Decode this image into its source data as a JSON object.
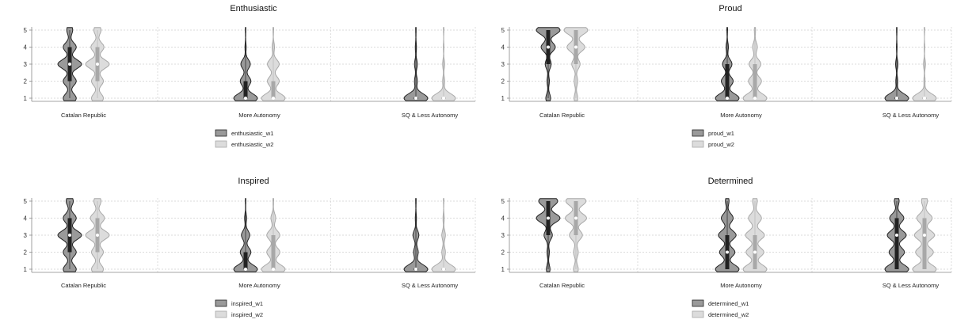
{
  "colors": {
    "w1_fill": "#9a9a9a",
    "w1_stroke": "#222222",
    "w2_fill": "#dcdcdc",
    "w2_stroke": "#a8a8a8",
    "grid": "#d0d0d0"
  },
  "chart_data": [
    {
      "type": "violin",
      "title": "Enthusiastic",
      "categories": [
        "Catalan Republic",
        "More Autonomy",
        "SQ & Less Autonomy"
      ],
      "ylim": [
        1,
        5
      ],
      "yticks": [
        1,
        2,
        3,
        4,
        5
      ],
      "grid": true,
      "legend": "bottom-center",
      "series": [
        {
          "name": "enthusiastic_w1",
          "groups": [
            {
              "dist": [
                0.55,
                0.55,
                1.0,
                0.55,
                0.25
              ],
              "median": 3,
              "q1": 2,
              "q3": 4
            },
            {
              "dist": [
                1.0,
                0.45,
                0.4,
                0.05,
                0.02
              ],
              "median": 1,
              "q1": 1,
              "q3": 2
            },
            {
              "dist": [
                1.0,
                0.12,
                0.12,
                0.05,
                0.02
              ],
              "median": 1,
              "q1": 1,
              "q3": 1
            }
          ]
        },
        {
          "name": "enthusiastic_w2",
          "groups": [
            {
              "dist": [
                0.5,
                0.5,
                1.0,
                0.55,
                0.3
              ],
              "median": 3,
              "q1": 2,
              "q3": 4
            },
            {
              "dist": [
                1.0,
                0.5,
                0.5,
                0.1,
                0.03
              ],
              "median": 1,
              "q1": 1,
              "q3": 2
            },
            {
              "dist": [
                1.0,
                0.08,
                0.08,
                0.03,
                0.02
              ],
              "median": 1,
              "q1": 1,
              "q3": 1
            }
          ]
        }
      ]
    },
    {
      "type": "violin",
      "title": "Proud",
      "categories": [
        "Catalan Republic",
        "More Autonomy",
        "SQ & Less Autonomy"
      ],
      "ylim": [
        1,
        5
      ],
      "yticks": [
        1,
        2,
        3,
        4,
        5
      ],
      "grid": true,
      "legend": "bottom-center",
      "series": [
        {
          "name": "proud_w1",
          "groups": [
            {
              "dist": [
                0.2,
                0.1,
                0.25,
                0.6,
                1.0
              ],
              "median": 4,
              "q1": 3,
              "q3": 5
            },
            {
              "dist": [
                1.0,
                0.5,
                0.4,
                0.1,
                0.03
              ],
              "median": 1,
              "q1": 1,
              "q3": 3
            },
            {
              "dist": [
                1.0,
                0.08,
                0.1,
                0.03,
                0.02
              ],
              "median": 1,
              "q1": 1,
              "q3": 1
            }
          ]
        },
        {
          "name": "proud_w2",
          "groups": [
            {
              "dist": [
                0.15,
                0.15,
                0.35,
                0.75,
                1.0
              ],
              "median": 4,
              "q1": 3,
              "q3": 5
            },
            {
              "dist": [
                1.0,
                0.55,
                0.5,
                0.2,
                0.05
              ],
              "median": 1,
              "q1": 1,
              "q3": 3
            },
            {
              "dist": [
                1.0,
                0.05,
                0.08,
                0.03,
                0.02
              ],
              "median": 1,
              "q1": 1,
              "q3": 1
            }
          ]
        }
      ]
    },
    {
      "type": "violin",
      "title": "Inspired",
      "categories": [
        "Catalan Republic",
        "More Autonomy",
        "SQ & Less Autonomy"
      ],
      "ylim": [
        1,
        5
      ],
      "yticks": [
        1,
        2,
        3,
        4,
        5
      ],
      "grid": true,
      "legend": "bottom-center",
      "series": [
        {
          "name": "inspired_w1",
          "groups": [
            {
              "dist": [
                0.55,
                0.55,
                1.0,
                0.55,
                0.3
              ],
              "median": 3,
              "q1": 2,
              "q3": 4
            },
            {
              "dist": [
                1.0,
                0.45,
                0.35,
                0.08,
                0.02
              ],
              "median": 1,
              "q1": 1,
              "q3": 2
            },
            {
              "dist": [
                1.0,
                0.2,
                0.25,
                0.05,
                0.02
              ],
              "median": 1,
              "q1": 1,
              "q3": 1
            }
          ]
        },
        {
          "name": "inspired_w2",
          "groups": [
            {
              "dist": [
                0.5,
                0.5,
                1.0,
                0.6,
                0.3
              ],
              "median": 3,
              "q1": 2,
              "q3": 4
            },
            {
              "dist": [
                1.0,
                0.55,
                0.55,
                0.2,
                0.03
              ],
              "median": 1,
              "q1": 1,
              "q3": 3
            },
            {
              "dist": [
                1.0,
                0.15,
                0.15,
                0.05,
                0.02
              ],
              "median": 1,
              "q1": 1,
              "q3": 1
            }
          ]
        }
      ]
    },
    {
      "type": "violin",
      "title": "Determined",
      "categories": [
        "Catalan Republic",
        "More Autonomy",
        "SQ & Less Autonomy"
      ],
      "ylim": [
        1,
        5
      ],
      "yticks": [
        1,
        2,
        3,
        4,
        5
      ],
      "grid": true,
      "legend": "bottom-center",
      "series": [
        {
          "name": "determined_w1",
          "groups": [
            {
              "dist": [
                0.15,
                0.1,
                0.35,
                1.0,
                0.8
              ],
              "median": 4,
              "q1": 3,
              "q3": 5
            },
            {
              "dist": [
                1.0,
                0.65,
                0.75,
                0.5,
                0.15
              ],
              "median": 2,
              "q1": 1,
              "q3": 3
            },
            {
              "dist": [
                1.0,
                0.65,
                0.8,
                0.6,
                0.2
              ],
              "median": 3,
              "q1": 1,
              "q3": 4
            }
          ]
        },
        {
          "name": "determined_w2",
          "groups": [
            {
              "dist": [
                0.2,
                0.2,
                0.55,
                0.9,
                0.85
              ],
              "median": 4,
              "q1": 3,
              "q3": 5
            },
            {
              "dist": [
                1.0,
                0.75,
                0.8,
                0.55,
                0.2
              ],
              "median": 2,
              "q1": 1,
              "q3": 3
            },
            {
              "dist": [
                1.0,
                0.75,
                0.85,
                0.65,
                0.25
              ],
              "median": 3,
              "q1": 1,
              "q3": 4
            }
          ]
        }
      ]
    }
  ]
}
